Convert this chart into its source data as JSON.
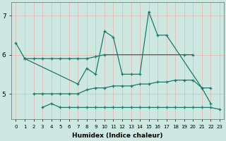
{
  "xlabel": "Humidex (Indice chaleur)",
  "bg_color": "#cce8e0",
  "grid_color": "#e8b0b0",
  "line_color": "#1a7a6a",
  "ylim": [
    4.35,
    7.35
  ],
  "yticks": [
    5,
    6,
    7
  ],
  "figsize": [
    3.2,
    2.0
  ],
  "dpi": 100,
  "line_jagged_x": [
    0,
    1,
    7,
    8,
    9,
    10,
    11,
    12,
    13,
    14,
    15,
    16,
    17,
    21,
    22
  ],
  "line_jagged_y": [
    6.3,
    5.9,
    5.25,
    5.65,
    5.5,
    6.6,
    6.45,
    5.5,
    5.5,
    5.5,
    7.1,
    6.5,
    6.5,
    5.15,
    4.75
  ],
  "line_flat_x": [
    1,
    2,
    3,
    4,
    5,
    6,
    7,
    8,
    9,
    10,
    19,
    20
  ],
  "line_flat_y": [
    5.9,
    5.9,
    5.9,
    5.9,
    5.9,
    5.9,
    5.9,
    5.9,
    5.95,
    6.0,
    6.0,
    6.0
  ],
  "line_mean_x": [
    2,
    3,
    4,
    5,
    6,
    7,
    8,
    9,
    10,
    11,
    12,
    13,
    14,
    15,
    16,
    17,
    18,
    19,
    20,
    21,
    22
  ],
  "line_mean_y": [
    5.0,
    5.0,
    5.0,
    5.0,
    5.0,
    5.0,
    5.1,
    5.15,
    5.15,
    5.2,
    5.2,
    5.2,
    5.25,
    5.25,
    5.3,
    5.3,
    5.35,
    5.35,
    5.35,
    5.15,
    5.15
  ],
  "line_min_x": [
    3,
    4,
    5,
    6,
    7,
    8,
    9,
    10,
    11,
    12,
    13,
    14,
    15,
    16,
    17,
    18,
    19,
    20,
    21,
    22,
    23
  ],
  "line_min_y": [
    4.65,
    4.75,
    4.65,
    4.65,
    4.65,
    4.65,
    4.65,
    4.65,
    4.65,
    4.65,
    4.65,
    4.65,
    4.65,
    4.65,
    4.65,
    4.65,
    4.65,
    4.65,
    4.65,
    4.65,
    4.6
  ]
}
